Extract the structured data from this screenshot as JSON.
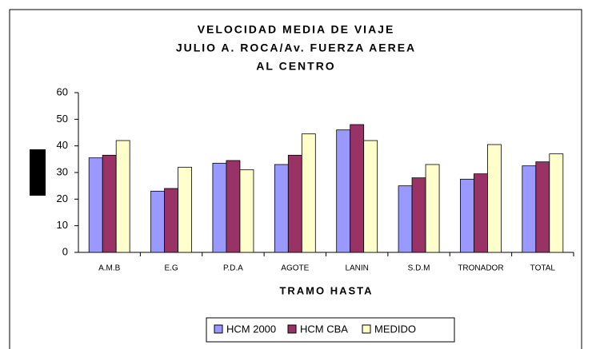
{
  "chart_data": {
    "type": "bar",
    "title": [
      "VELOCIDAD MEDIA DE VIAJE",
      "JULIO A. ROCA/Av. FUERZA AEREA",
      "AL CENTRO"
    ],
    "x_label": "TRAMO HASTA",
    "categories": [
      "A.M.B",
      "E.G",
      "P.D.A",
      "AGOTE",
      "LANIN",
      "S.D.M",
      "TRONADOR",
      "TOTAL"
    ],
    "series": [
      {
        "name": "HCM 2000",
        "color": "#9999ff",
        "values": [
          35.5,
          23,
          33.5,
          33,
          46,
          25,
          27.5,
          32.5
        ]
      },
      {
        "name": "HCM CBA",
        "color": "#993366",
        "values": [
          36.5,
          24,
          34.5,
          36.5,
          48,
          28,
          29.5,
          34
        ]
      },
      {
        "name": "MEDIDO",
        "color": "#ffffcc",
        "values": [
          42,
          32,
          31,
          44.5,
          42,
          33,
          40.5,
          37
        ]
      }
    ],
    "ylim": [
      0,
      60
    ],
    "yticks": [
      0,
      10,
      20,
      30,
      40,
      50,
      60
    ],
    "legend": "bottom"
  }
}
